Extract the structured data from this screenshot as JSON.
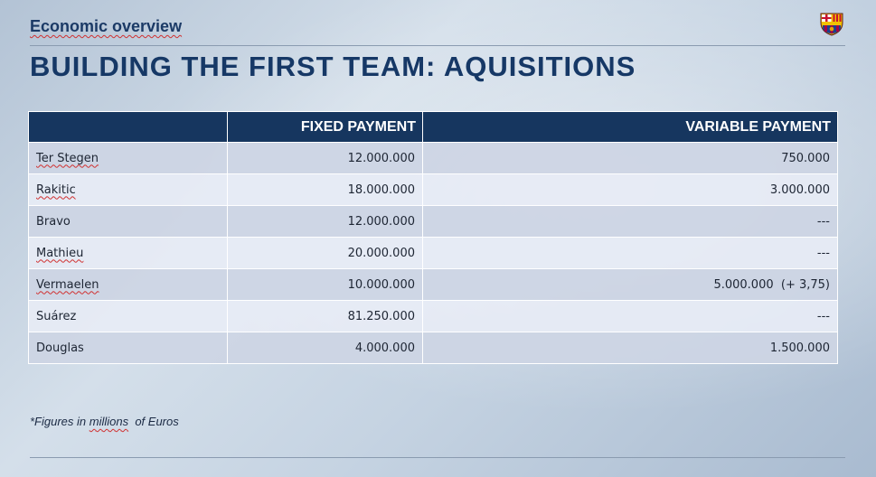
{
  "header": {
    "section_label": "Economic overview",
    "title": "BUILDING THE FIRST TEAM: AQUISITIONS",
    "logo_icon": "fc-barcelona-crest-icon"
  },
  "table": {
    "columns": [
      "",
      "FIXED PAYMENT",
      "VARIABLE PAYMENT"
    ],
    "rows": [
      {
        "name": "Ter Stegen",
        "fixed": "12.000.000",
        "variable": "750.000"
      },
      {
        "name": "Rakitic",
        "fixed": "18.000.000",
        "variable": "3.000.000"
      },
      {
        "name": "Bravo",
        "fixed": "12.000.000",
        "variable": "---"
      },
      {
        "name": "Mathieu",
        "fixed": "20.000.000",
        "variable": "---"
      },
      {
        "name": "Vermaelen",
        "fixed": "10.000.000",
        "variable": "5.000.000  (+ 3,75)"
      },
      {
        "name": "Suárez",
        "fixed": "81.250.000",
        "variable": "---"
      },
      {
        "name": "Douglas",
        "fixed": "4.000.000",
        "variable": "1.500.000"
      }
    ]
  },
  "footnote": {
    "prefix": "*Figures in ",
    "word": "millions",
    "suffix": "  of Euros"
  },
  "colors": {
    "header_fill": "#16365f",
    "title": "#163866",
    "row_odd": "#cdd5e4",
    "row_even": "#e7ecf5"
  }
}
